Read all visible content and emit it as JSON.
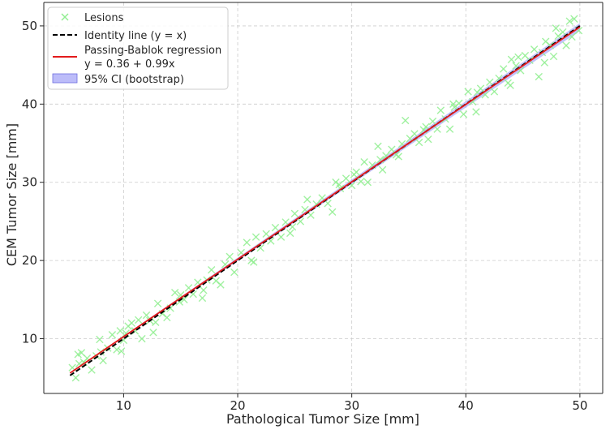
{
  "chart_data": {
    "type": "scatter",
    "title": "",
    "xlabel": "Pathological Tumor Size [mm]",
    "ylabel": "CEM Tumor Size [mm]",
    "xlim": [
      3,
      52
    ],
    "ylim": [
      3,
      53
    ],
    "xticks": [
      10,
      20,
      30,
      40,
      50
    ],
    "yticks": [
      10,
      20,
      30,
      40,
      50
    ],
    "grid": true,
    "grid_style": "dashed",
    "legend_position": "top-left",
    "colors": {
      "points": "#90ee90",
      "identity": "#000000",
      "regression": "#e31a1c",
      "ci_fill": "#8f8ff5"
    },
    "legend": [
      {
        "key": "lesions",
        "label": "Lesions",
        "marker": "x"
      },
      {
        "key": "identity",
        "label": "Identity line (y = x)",
        "marker": "dashed-line"
      },
      {
        "key": "regression",
        "label": "Passing-Bablok regression",
        "label2": "y = 0.36 + 0.99x",
        "marker": "line"
      },
      {
        "key": "ci",
        "label": "95% CI (bootstrap)",
        "marker": "patch"
      }
    ],
    "identity_line": {
      "intercept": 0,
      "slope": 1,
      "x_range": [
        5.3,
        50
      ]
    },
    "regression_line": {
      "intercept": 0.36,
      "slope": 0.99,
      "x_range": [
        5.3,
        50
      ]
    },
    "ci_band": {
      "lower_slope": 0.98,
      "upper_slope": 1.0,
      "intercept": 0.36
    },
    "series": [
      {
        "name": "Lesions",
        "points": [
          [
            5.5,
            6.3
          ],
          [
            5.8,
            5.0
          ],
          [
            6.0,
            8.0
          ],
          [
            6.1,
            6.8
          ],
          [
            6.3,
            8.2
          ],
          [
            6.5,
            7.0
          ],
          [
            7.2,
            6.0
          ],
          [
            7.6,
            7.8
          ],
          [
            7.9,
            9.9
          ],
          [
            8.2,
            7.2
          ],
          [
            8.6,
            8.8
          ],
          [
            9.0,
            10.5
          ],
          [
            9.4,
            8.6
          ],
          [
            9.7,
            11.0
          ],
          [
            10.0,
            9.8
          ],
          [
            10.4,
            11.6
          ],
          [
            10.7,
            12.0
          ],
          [
            11.0,
            11.0
          ],
          [
            11.3,
            12.4
          ],
          [
            11.6,
            10.0
          ],
          [
            12.0,
            13.0
          ],
          [
            12.3,
            12.3
          ],
          [
            12.6,
            10.8
          ],
          [
            13.0,
            14.5
          ],
          [
            13.4,
            13.2
          ],
          [
            13.8,
            12.7
          ],
          [
            14.1,
            13.9
          ],
          [
            14.5,
            15.9
          ],
          [
            14.9,
            14.7
          ],
          [
            15.3,
            15.0
          ],
          [
            15.7,
            16.5
          ],
          [
            16.1,
            15.7
          ],
          [
            16.5,
            17.2
          ],
          [
            16.9,
            15.2
          ],
          [
            17.3,
            17.5
          ],
          [
            17.7,
            18.8
          ],
          [
            18.1,
            17.4
          ],
          [
            18.5,
            16.9
          ],
          [
            18.9,
            19.5
          ],
          [
            19.3,
            20.5
          ],
          [
            19.7,
            18.5
          ],
          [
            20.3,
            21.0
          ],
          [
            20.8,
            22.3
          ],
          [
            21.2,
            20.0
          ],
          [
            21.6,
            23.0
          ],
          [
            22.0,
            21.6
          ],
          [
            22.5,
            23.4
          ],
          [
            22.9,
            22.5
          ],
          [
            23.3,
            24.2
          ],
          [
            23.8,
            23.0
          ],
          [
            24.2,
            24.9
          ],
          [
            24.6,
            23.5
          ],
          [
            25.0,
            26.0
          ],
          [
            25.5,
            25.0
          ],
          [
            25.9,
            26.5
          ],
          [
            26.4,
            25.8
          ],
          [
            26.9,
            27.2
          ],
          [
            27.4,
            28.0
          ],
          [
            27.9,
            27.3
          ],
          [
            28.3,
            26.2
          ],
          [
            28.6,
            30.0
          ],
          [
            29.0,
            29.2
          ],
          [
            29.5,
            30.5
          ],
          [
            30.0,
            29.6
          ],
          [
            30.4,
            31.3
          ],
          [
            30.8,
            30.1
          ],
          [
            31.1,
            32.6
          ],
          [
            31.4,
            30.0
          ],
          [
            31.8,
            32.2
          ],
          [
            32.3,
            34.6
          ],
          [
            32.7,
            31.6
          ],
          [
            33.0,
            33.4
          ],
          [
            33.5,
            34.2
          ],
          [
            33.9,
            33.5
          ],
          [
            34.4,
            34.9
          ],
          [
            34.7,
            37.9
          ],
          [
            35.1,
            35.6
          ],
          [
            35.5,
            36.2
          ],
          [
            35.9,
            35.1
          ],
          [
            36.3,
            36.7
          ],
          [
            36.7,
            35.5
          ],
          [
            37.1,
            37.8
          ],
          [
            37.5,
            36.8
          ],
          [
            37.8,
            39.2
          ],
          [
            38.2,
            38.1
          ],
          [
            38.6,
            36.8
          ],
          [
            39.0,
            39.6
          ],
          [
            39.4,
            40.1
          ],
          [
            39.8,
            38.7
          ],
          [
            40.2,
            41.6
          ],
          [
            40.6,
            40.3
          ],
          [
            40.9,
            39.0
          ],
          [
            41.3,
            42.0
          ],
          [
            41.7,
            41.2
          ],
          [
            42.1,
            42.8
          ],
          [
            42.5,
            41.6
          ],
          [
            42.9,
            43.3
          ],
          [
            43.3,
            44.5
          ],
          [
            43.7,
            42.7
          ],
          [
            44.0,
            45.7
          ],
          [
            44.4,
            44.9
          ],
          [
            44.8,
            44.3
          ],
          [
            45.2,
            46.2
          ],
          [
            45.6,
            45.6
          ],
          [
            46.0,
            47.0
          ],
          [
            46.4,
            43.5
          ],
          [
            46.7,
            46.6
          ],
          [
            47.0,
            48.0
          ],
          [
            47.4,
            47.5
          ],
          [
            47.7,
            46.1
          ],
          [
            48.1,
            48.7
          ],
          [
            48.5,
            49.2
          ],
          [
            48.8,
            47.5
          ],
          [
            49.1,
            50.6
          ],
          [
            49.5,
            50.9
          ],
          [
            49.9,
            49.4
          ],
          [
            17.0,
            16.2
          ],
          [
            21.4,
            19.8
          ],
          [
            26.1,
            27.8
          ],
          [
            34.1,
            33.3
          ],
          [
            38.9,
            40.0
          ],
          [
            43.9,
            42.4
          ],
          [
            46.9,
            45.3
          ],
          [
            8.0,
            8.3
          ],
          [
            10.2,
            10.7
          ],
          [
            30.2,
            31.0
          ],
          [
            36.5,
            37.1
          ],
          [
            41.0,
            41.5
          ],
          [
            47.9,
            49.7
          ],
          [
            9.8,
            8.4
          ],
          [
            12.8,
            12.1
          ],
          [
            24.8,
            24.3
          ],
          [
            28.9,
            29.7
          ],
          [
            32.5,
            32.9
          ],
          [
            44.6,
            46.0
          ],
          [
            49.3,
            48.6
          ],
          [
            6.8,
            7.5
          ],
          [
            15.0,
            15.6
          ]
        ]
      }
    ]
  }
}
